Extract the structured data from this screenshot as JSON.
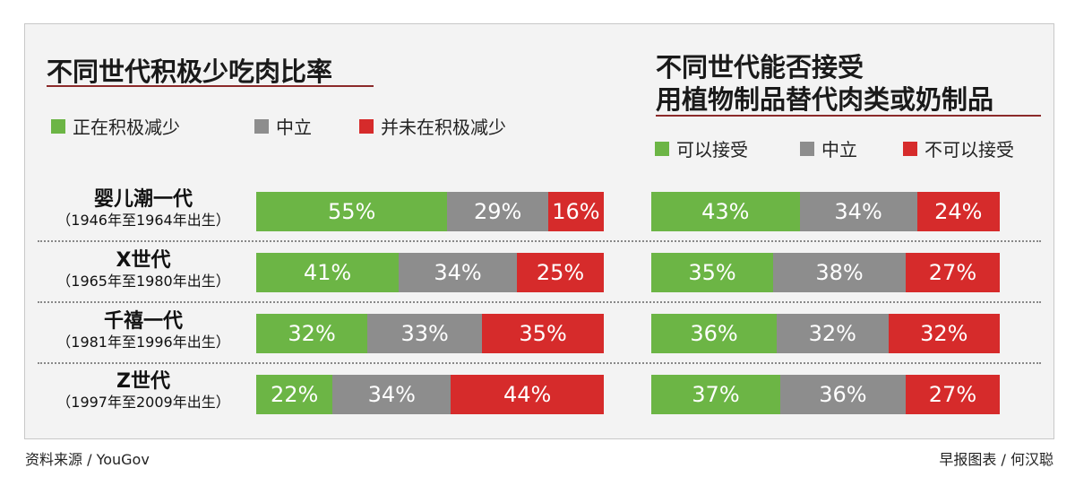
{
  "colors": {
    "green": "#6cb545",
    "gray": "#8d8d8d",
    "red": "#d62b2b"
  },
  "left": {
    "title": "不同世代积极少吃肉比率",
    "legend": [
      "正在积极减少",
      "中立",
      "并未在积极减少"
    ]
  },
  "right": {
    "title_line1": "不同世代能否接受",
    "title_line2": "用植物制品替代肉类或奶制品",
    "legend": [
      "可以接受",
      "中立",
      "不可以接受"
    ]
  },
  "rows": [
    {
      "gen": "婴儿潮一代",
      "years": "（1946年至1964年出生）"
    },
    {
      "gen": "X世代",
      "years": "（1965年至1980年出生）"
    },
    {
      "gen": "千禧一代",
      "years": "（1981年至1996年出生）"
    },
    {
      "gen": "Z世代",
      "years": "（1997年至2009年出生）"
    }
  ],
  "chart_data": [
    {
      "type": "bar",
      "stacked": true,
      "orientation": "horizontal",
      "title": "不同世代积极少吃肉比率",
      "categories": [
        "婴儿潮一代",
        "X世代",
        "千禧一代",
        "Z世代"
      ],
      "series": [
        {
          "name": "正在积极减少",
          "values": [
            55,
            41,
            32,
            22
          ],
          "labels": [
            "55%",
            "41%",
            "32%",
            "22%"
          ]
        },
        {
          "name": "中立",
          "values": [
            29,
            34,
            33,
            34
          ],
          "labels": [
            "29%",
            "34%",
            "33%",
            "34%"
          ]
        },
        {
          "name": "并未在积极减少",
          "values": [
            16,
            25,
            35,
            44
          ],
          "labels": [
            "16%",
            "25%",
            "35%",
            "44%"
          ]
        }
      ]
    },
    {
      "type": "bar",
      "stacked": true,
      "orientation": "horizontal",
      "title": "不同世代能否接受用植物制品替代肉类或奶制品",
      "categories": [
        "婴儿潮一代",
        "X世代",
        "千禧一代",
        "Z世代"
      ],
      "series": [
        {
          "name": "可以接受",
          "values": [
            43,
            35,
            36,
            37
          ],
          "labels": [
            "43%",
            "35%",
            "36%",
            "37%"
          ]
        },
        {
          "name": "中立",
          "values": [
            34,
            38,
            32,
            36
          ],
          "labels": [
            "34%",
            "38%",
            "32%",
            "36%"
          ]
        },
        {
          "name": "不可以接受",
          "values": [
            24,
            27,
            32,
            27
          ],
          "labels": [
            "24%",
            "27%",
            "32%",
            "27%"
          ]
        }
      ]
    }
  ],
  "footer": {
    "source": "资料来源 / YouGov",
    "credit": "早报图表 / 何汉聪"
  }
}
